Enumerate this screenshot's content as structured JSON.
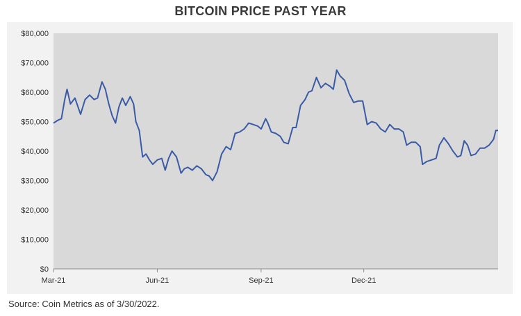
{
  "chart_data": {
    "type": "line",
    "title": "BITCOIN PRICE PAST YEAR",
    "xlabel": "",
    "ylabel": "",
    "x_ticks": [
      "Mar-21",
      "Jun-21",
      "Sep-21",
      "Dec-21"
    ],
    "y_ticks": [
      "$0",
      "$10,000",
      "$20,000",
      "$30,000",
      "$40,000",
      "$50,000",
      "$60,000",
      "$70,000",
      "$80,000"
    ],
    "ylim": [
      0,
      80000
    ],
    "xlim": [
      "2021-03-01",
      "2022-03-30"
    ],
    "grid": false,
    "series": [
      {
        "color": "#3a5aa6",
        "x": [
          "2021-03-01",
          "2021-03-05",
          "2021-03-08",
          "2021-03-11",
          "2021-03-13",
          "2021-03-16",
          "2021-03-20",
          "2021-03-25",
          "2021-03-29",
          "2021-04-02",
          "2021-04-06",
          "2021-04-09",
          "2021-04-13",
          "2021-04-16",
          "2021-04-19",
          "2021-04-22",
          "2021-04-25",
          "2021-04-28",
          "2021-05-01",
          "2021-05-04",
          "2021-05-08",
          "2021-05-11",
          "2021-05-13",
          "2021-05-16",
          "2021-05-19",
          "2021-05-22",
          "2021-05-25",
          "2021-05-28",
          "2021-06-01",
          "2021-06-05",
          "2021-06-08",
          "2021-06-11",
          "2021-06-14",
          "2021-06-18",
          "2021-06-22",
          "2021-06-25",
          "2021-06-28",
          "2021-07-02",
          "2021-07-06",
          "2021-07-10",
          "2021-07-14",
          "2021-07-17",
          "2021-07-20",
          "2021-07-24",
          "2021-07-28",
          "2021-08-01",
          "2021-08-05",
          "2021-08-09",
          "2021-08-13",
          "2021-08-17",
          "2021-08-21",
          "2021-08-25",
          "2021-08-29",
          "2021-09-01",
          "2021-09-05",
          "2021-09-07",
          "2021-09-10",
          "2021-09-14",
          "2021-09-18",
          "2021-09-21",
          "2021-09-25",
          "2021-09-29",
          "2021-10-02",
          "2021-10-06",
          "2021-10-10",
          "2021-10-13",
          "2021-10-16",
          "2021-10-20",
          "2021-10-24",
          "2021-10-28",
          "2021-11-01",
          "2021-11-04",
          "2021-11-07",
          "2021-11-10",
          "2021-11-14",
          "2021-11-18",
          "2021-11-22",
          "2021-11-26",
          "2021-11-30",
          "2021-12-04",
          "2021-12-08",
          "2021-12-12",
          "2021-12-16",
          "2021-12-20",
          "2021-12-24",
          "2021-12-28",
          "2022-01-01",
          "2022-01-05",
          "2022-01-08",
          "2022-01-12",
          "2022-01-16",
          "2022-01-20",
          "2022-01-22",
          "2022-01-26",
          "2022-01-30",
          "2022-02-03",
          "2022-02-06",
          "2022-02-10",
          "2022-02-14",
          "2022-02-18",
          "2022-02-22",
          "2022-02-25",
          "2022-02-28",
          "2022-03-03",
          "2022-03-06",
          "2022-03-10",
          "2022-03-14",
          "2022-03-18",
          "2022-03-22",
          "2022-03-26",
          "2022-03-28",
          "2022-03-30"
        ],
        "values": [
          49500,
          50500,
          51000,
          57500,
          61000,
          56000,
          58000,
          52500,
          57500,
          59000,
          57500,
          58000,
          63500,
          61000,
          56000,
          52000,
          49500,
          55000,
          58000,
          55500,
          58500,
          56000,
          50000,
          47000,
          38000,
          39000,
          37000,
          35500,
          37000,
          37500,
          33500,
          37500,
          40000,
          38000,
          32500,
          34000,
          34500,
          33500,
          35000,
          34000,
          32000,
          31500,
          30000,
          33000,
          39000,
          41500,
          40500,
          46000,
          46500,
          47500,
          49500,
          49000,
          48500,
          47500,
          51000,
          49500,
          46500,
          46000,
          45000,
          43000,
          42500,
          48000,
          48000,
          55500,
          57500,
          60000,
          60500,
          65000,
          61500,
          63000,
          62000,
          61000,
          67500,
          65500,
          64000,
          59500,
          56500,
          57000,
          57000,
          49000,
          50000,
          49500,
          47500,
          46500,
          49000,
          47500,
          47500,
          46500,
          42000,
          43000,
          43000,
          41500,
          35500,
          36500,
          37000,
          37500,
          42000,
          44500,
          42500,
          40000,
          38000,
          38500,
          43500,
          42000,
          38500,
          39000,
          41000,
          41000,
          42000,
          44000,
          47000,
          47000
        ]
      }
    ],
    "source": "Source: Coin Metrics as of 3/30/2022."
  }
}
